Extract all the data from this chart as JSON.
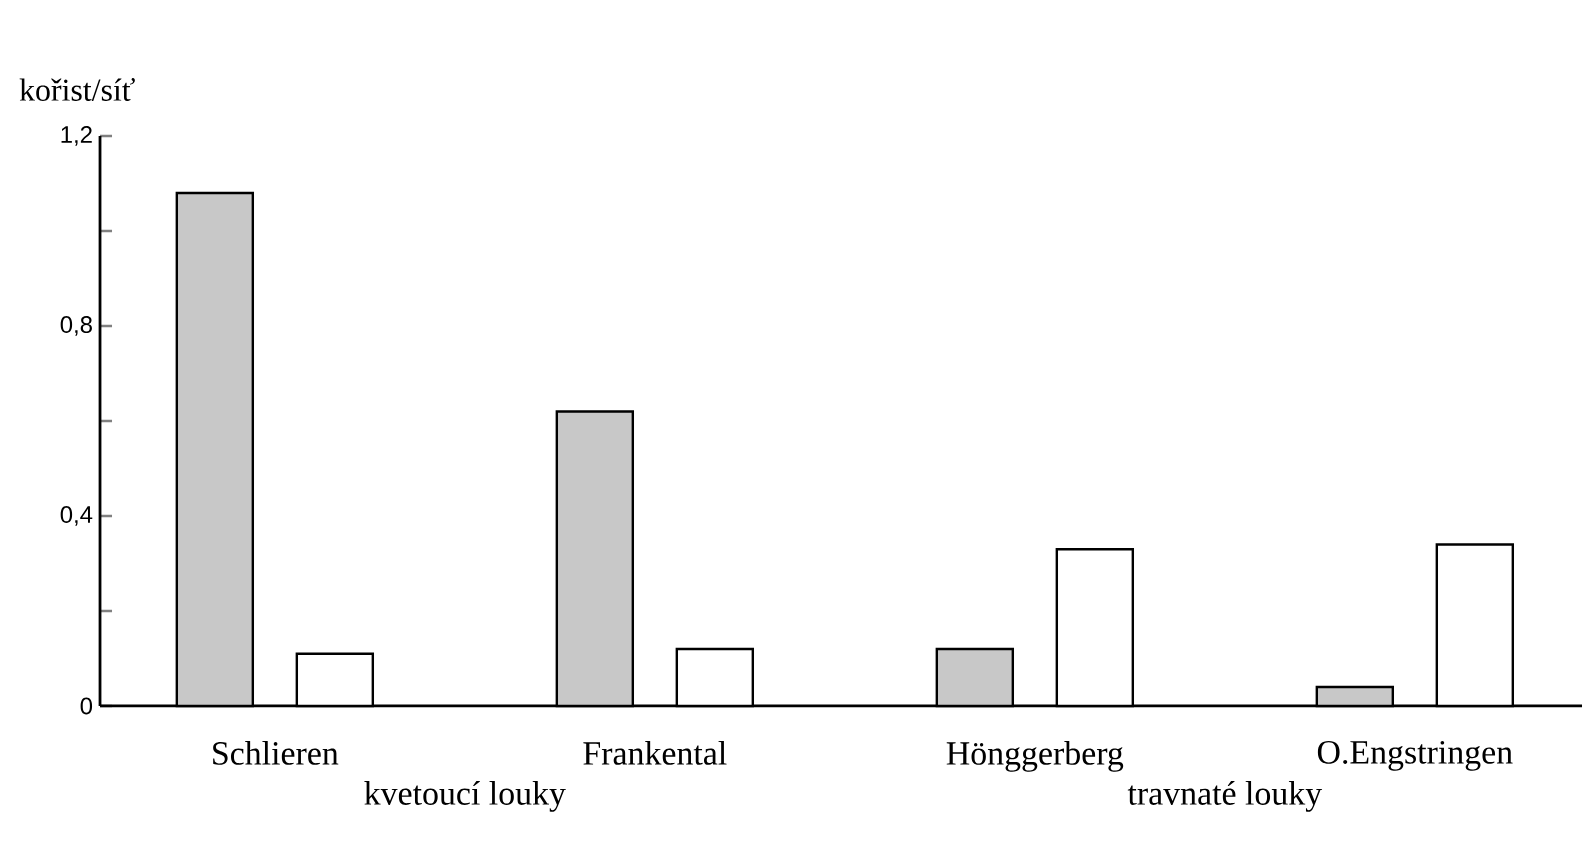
{
  "chart_data": {
    "type": "bar",
    "ylabel": "kořist/síť",
    "categories": [
      "Schlieren",
      "Frankental",
      "Hönggerberg",
      "O.Engstringen"
    ],
    "series": [
      {
        "color": "#c8c8c8",
        "values": [
          1.08,
          0.62,
          0.12,
          0.04
        ]
      },
      {
        "color": "#ffffff",
        "values": [
          0.11,
          0.12,
          0.33,
          0.34
        ]
      }
    ],
    "ylim": [
      0,
      1.2
    ],
    "yticks": [
      0,
      {
        "value": 0.2,
        "label": null
      },
      {
        "value": 0.4,
        "label": "0,4"
      },
      {
        "value": 0.6,
        "label": null
      },
      {
        "value": 0.8,
        "label": "0,8"
      },
      {
        "value": 1.0,
        "label": null
      },
      {
        "value": 1.2,
        "label": "1,2"
      }
    ],
    "annotations": [
      "kvetoucí louky",
      "travnaté louky"
    ],
    "grid": false
  }
}
